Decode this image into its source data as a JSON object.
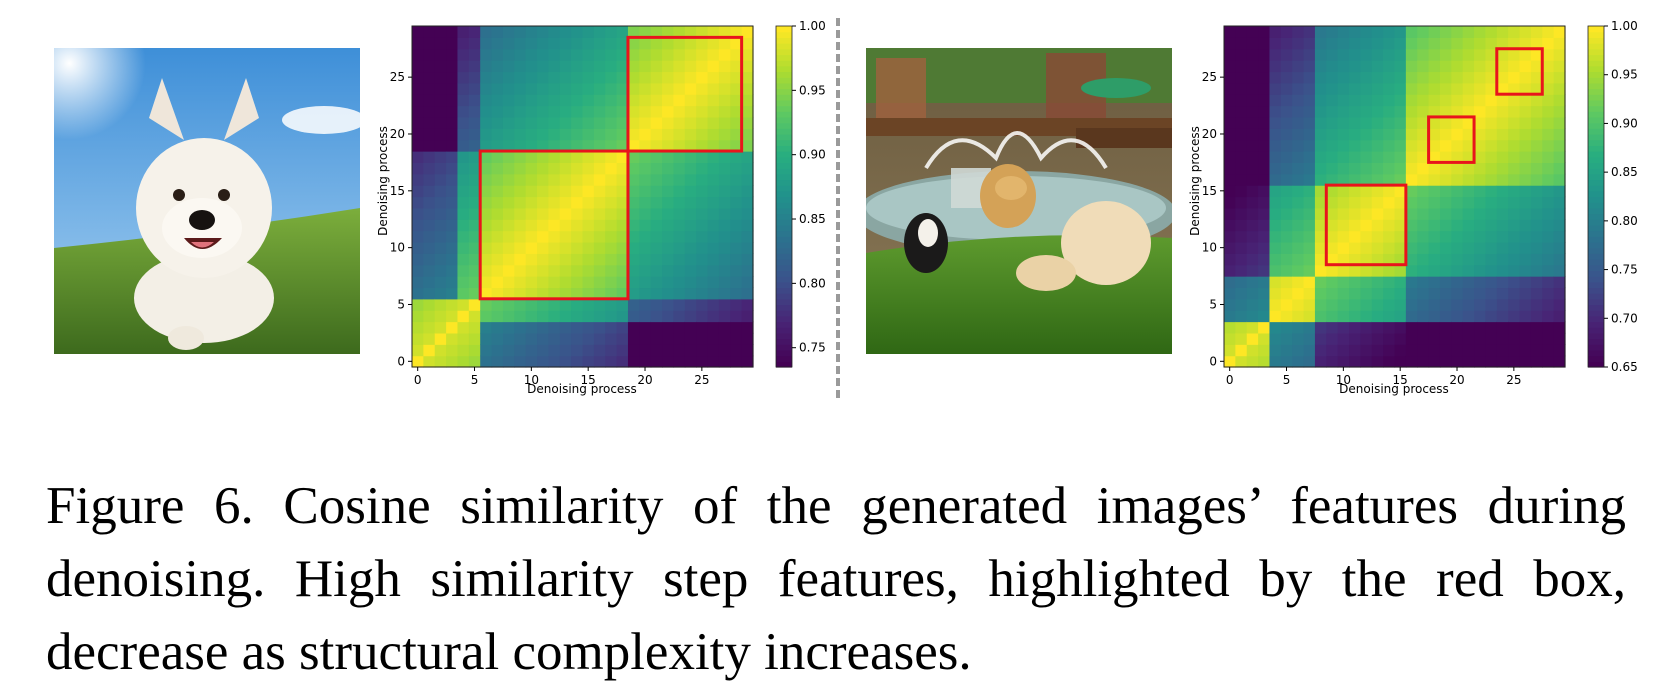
{
  "caption": {
    "text": "Figure 6. Cosine similarity of the generated images’ features during denoising. High similarity step features, highlighted by the red box, decrease as structural complexity increases."
  },
  "photos": [
    {
      "subject": "white West Highland terrier running on grass under a blue sky"
    },
    {
      "subject": "three dogs playing on grass next to a park fountain"
    }
  ],
  "chart_data": [
    {
      "type": "heatmap",
      "xlabel": "Denoising process",
      "ylabel": "Denoising process",
      "x_ticks": [
        "0",
        "5",
        "10",
        "15",
        "20",
        "25"
      ],
      "y_ticks": [
        "0",
        "5",
        "10",
        "15",
        "20",
        "25"
      ],
      "steps": 30,
      "colormap": "viridis",
      "colorbar": {
        "min": 0.735,
        "max": 1.0,
        "ticks": [
          "0.75",
          "0.80",
          "0.85",
          "0.90",
          "0.95",
          "1.00"
        ]
      },
      "stages": [
        [
          0,
          5
        ],
        [
          6,
          18
        ],
        [
          19,
          29
        ]
      ],
      "highlight_boxes": [
        {
          "steps": [
            6,
            18
          ]
        },
        {
          "steps": [
            19,
            28
          ]
        }
      ],
      "box_color": "#e8141c"
    },
    {
      "type": "heatmap",
      "xlabel": "Denoising process",
      "ylabel": "Denoising process",
      "x_ticks": [
        "0",
        "5",
        "10",
        "15",
        "20",
        "25"
      ],
      "y_ticks": [
        "0",
        "5",
        "10",
        "15",
        "20",
        "25"
      ],
      "steps": 30,
      "colormap": "viridis",
      "colorbar": {
        "min": 0.65,
        "max": 1.0,
        "ticks": [
          "0.65",
          "0.70",
          "0.75",
          "0.80",
          "0.85",
          "0.90",
          "0.95",
          "1.00"
        ]
      },
      "stages": [
        [
          0,
          3
        ],
        [
          4,
          7
        ],
        [
          8,
          15
        ],
        [
          16,
          29
        ]
      ],
      "highlight_boxes": [
        {
          "steps": [
            9,
            15
          ]
        },
        {
          "steps": [
            18,
            21
          ]
        },
        {
          "steps": [
            24,
            27
          ]
        }
      ],
      "box_color": "#e8141c"
    }
  ]
}
